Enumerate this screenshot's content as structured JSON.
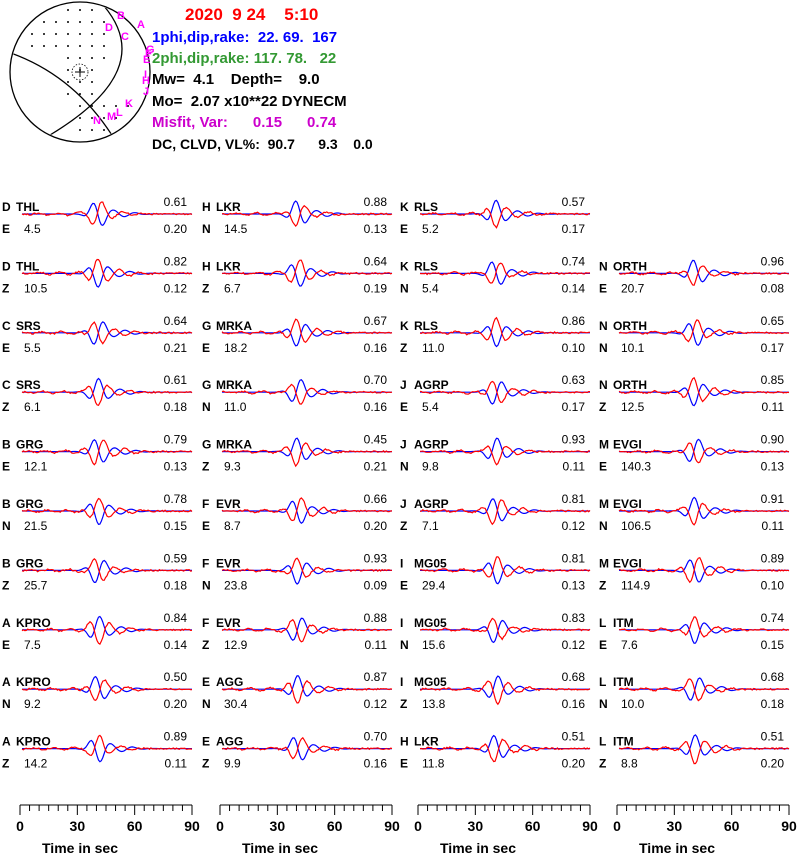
{
  "header": {
    "date_line": "2020  9 24    5:10",
    "plane1": "1phi,dip,rake:  22. 69.  167",
    "plane2": "2phi,dip,rake: 117. 78.   22",
    "mw_depth": "Mw=  4.1    Depth=    9.0",
    "moment": "Mo=  2.07 x10**22 DYNECM",
    "misfit": "Misfit, Var:      0.15      0.74",
    "dc_clvd": "DC, CLVD, VL%:  90.7      9.3    0.0"
  },
  "colors": {
    "date": "#ff0000",
    "plane1": "#0000ff",
    "plane2": "#339933",
    "misfit": "#cc00cc",
    "observed": "#ff0000",
    "synthetic": "#0000ff",
    "text": "#000000",
    "station_marker": "#ff00ff"
  },
  "beachball": {
    "station_markers": [
      "A",
      "B",
      "C",
      "D",
      "E",
      "F",
      "G",
      "H",
      "I",
      "J",
      "K",
      "L",
      "M",
      "N"
    ]
  },
  "chart_data": {
    "type": "line",
    "series_legend": [
      "observed",
      "synthetic"
    ],
    "xlabel": "Time  in sec",
    "xticks": [
      0,
      30,
      60,
      90
    ],
    "xlim": [
      0,
      90
    ],
    "columns": [
      [
        {
          "id": "D",
          "station": "THL",
          "comp": "E",
          "distance": "4.5",
          "cc": "0.61",
          "misfit": "0.20"
        },
        {
          "id": "D",
          "station": "THL",
          "comp": "Z",
          "distance": "10.5",
          "cc": "0.82",
          "misfit": "0.12"
        },
        {
          "id": "C",
          "station": "SRS",
          "comp": "E",
          "distance": "5.5",
          "cc": "0.64",
          "misfit": "0.21"
        },
        {
          "id": "C",
          "station": "SRS",
          "comp": "Z",
          "distance": "6.1",
          "cc": "0.61",
          "misfit": "0.18"
        },
        {
          "id": "B",
          "station": "GRG",
          "comp": "E",
          "distance": "12.1",
          "cc": "0.79",
          "misfit": "0.13"
        },
        {
          "id": "B",
          "station": "GRG",
          "comp": "N",
          "distance": "21.5",
          "cc": "0.78",
          "misfit": "0.15"
        },
        {
          "id": "B",
          "station": "GRG",
          "comp": "Z",
          "distance": "25.7",
          "cc": "0.59",
          "misfit": "0.18"
        },
        {
          "id": "A",
          "station": "KPRO",
          "comp": "E",
          "distance": "7.5",
          "cc": "0.84",
          "misfit": "0.14"
        },
        {
          "id": "A",
          "station": "KPRO",
          "comp": "N",
          "distance": "9.2",
          "cc": "0.50",
          "misfit": "0.20"
        },
        {
          "id": "A",
          "station": "KPRO",
          "comp": "Z",
          "distance": "14.2",
          "cc": "0.89",
          "misfit": "0.11"
        }
      ],
      [
        {
          "id": "H",
          "station": "LKR",
          "comp": "N",
          "distance": "14.5",
          "cc": "0.88",
          "misfit": "0.13"
        },
        {
          "id": "H",
          "station": "LKR",
          "comp": "Z",
          "distance": "6.7",
          "cc": "0.64",
          "misfit": "0.19"
        },
        {
          "id": "G",
          "station": "MRKA",
          "comp": "E",
          "distance": "18.2",
          "cc": "0.67",
          "misfit": "0.16"
        },
        {
          "id": "G",
          "station": "MRKA",
          "comp": "N",
          "distance": "11.0",
          "cc": "0.70",
          "misfit": "0.16"
        },
        {
          "id": "G",
          "station": "MRKA",
          "comp": "Z",
          "distance": "9.3",
          "cc": "0.45",
          "misfit": "0.21"
        },
        {
          "id": "F",
          "station": "EVR",
          "comp": "E",
          "distance": "8.7",
          "cc": "0.66",
          "misfit": "0.20"
        },
        {
          "id": "F",
          "station": "EVR",
          "comp": "N",
          "distance": "23.8",
          "cc": "0.93",
          "misfit": "0.09"
        },
        {
          "id": "F",
          "station": "EVR",
          "comp": "Z",
          "distance": "12.9",
          "cc": "0.88",
          "misfit": "0.11"
        },
        {
          "id": "E",
          "station": "AGG",
          "comp": "N",
          "distance": "30.4",
          "cc": "0.87",
          "misfit": "0.12"
        },
        {
          "id": "E",
          "station": "AGG",
          "comp": "Z",
          "distance": "9.9",
          "cc": "0.70",
          "misfit": "0.16"
        }
      ],
      [
        {
          "id": "K",
          "station": "RLS",
          "comp": "E",
          "distance": "5.2",
          "cc": "0.57",
          "misfit": "0.17"
        },
        {
          "id": "K",
          "station": "RLS",
          "comp": "N",
          "distance": "5.4",
          "cc": "0.74",
          "misfit": "0.14"
        },
        {
          "id": "K",
          "station": "RLS",
          "comp": "Z",
          "distance": "11.0",
          "cc": "0.86",
          "misfit": "0.10"
        },
        {
          "id": "J",
          "station": "AGRP",
          "comp": "E",
          "distance": "5.4",
          "cc": "0.63",
          "misfit": "0.17"
        },
        {
          "id": "J",
          "station": "AGRP",
          "comp": "N",
          "distance": "9.8",
          "cc": "0.93",
          "misfit": "0.11"
        },
        {
          "id": "J",
          "station": "AGRP",
          "comp": "Z",
          "distance": "7.1",
          "cc": "0.81",
          "misfit": "0.12"
        },
        {
          "id": "I",
          "station": "MG05",
          "comp": "E",
          "distance": "29.4",
          "cc": "0.81",
          "misfit": "0.13"
        },
        {
          "id": "I",
          "station": "MG05",
          "comp": "N",
          "distance": "15.6",
          "cc": "0.83",
          "misfit": "0.12"
        },
        {
          "id": "I",
          "station": "MG05",
          "comp": "Z",
          "distance": "13.8",
          "cc": "0.68",
          "misfit": "0.16"
        },
        {
          "id": "H",
          "station": "LKR",
          "comp": "E",
          "distance": "11.8",
          "cc": "0.51",
          "misfit": "0.20"
        }
      ],
      [
        null,
        {
          "id": "N",
          "station": "ORTH",
          "comp": "E",
          "distance": "20.7",
          "cc": "0.96",
          "misfit": "0.08"
        },
        {
          "id": "N",
          "station": "ORTH",
          "comp": "N",
          "distance": "10.1",
          "cc": "0.65",
          "misfit": "0.17"
        },
        {
          "id": "N",
          "station": "ORTH",
          "comp": "Z",
          "distance": "12.5",
          "cc": "0.85",
          "misfit": "0.11"
        },
        {
          "id": "M",
          "station": "EVGI",
          "comp": "E",
          "distance": "140.3",
          "cc": "0.90",
          "misfit": "0.13"
        },
        {
          "id": "M",
          "station": "EVGI",
          "comp": "N",
          "distance": "106.5",
          "cc": "0.91",
          "misfit": "0.11"
        },
        {
          "id": "M",
          "station": "EVGI",
          "comp": "Z",
          "distance": "114.9",
          "cc": "0.89",
          "misfit": "0.10"
        },
        {
          "id": "L",
          "station": "ITM",
          "comp": "E",
          "distance": "7.6",
          "cc": "0.74",
          "misfit": "0.15"
        },
        {
          "id": "L",
          "station": "ITM",
          "comp": "N",
          "distance": "10.0",
          "cc": "0.68",
          "misfit": "0.18"
        },
        {
          "id": "L",
          "station": "ITM",
          "comp": "Z",
          "distance": "8.8",
          "cc": "0.51",
          "misfit": "0.20"
        }
      ]
    ]
  }
}
